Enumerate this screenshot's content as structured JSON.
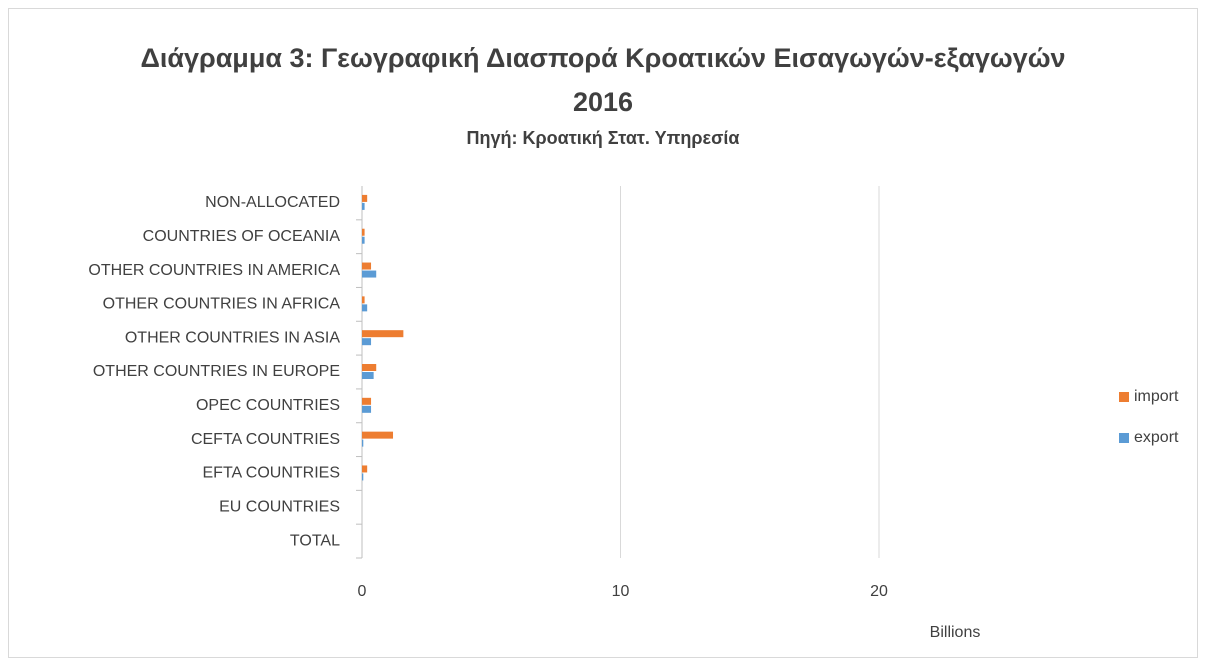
{
  "chart_data": {
    "type": "hbar",
    "title": "Διάγραμμα 3: Γεωγραφική Διασπορά Κροατικών Εισαγωγών-εξαγωγών 2016",
    "subtitle": "Πηγή: Κροατική Στατ. Υπηρεσία",
    "xlabel": "Billions",
    "categories": [
      "TOTAL",
      "EU COUNTRIES",
      "EFTA COUNTRIES",
      "CEFTA COUNTRIES",
      "OPEC COUNTRIES",
      "OTHER  COUNTRIES IN EUROPE",
      "OTHER  COUNTRIES IN ASIA",
      "OTHER  COUNTRIES IN AFRICA",
      "OTHER  COUNTRIES IN AMERICA",
      "COUNTRIES OF OCEANIA",
      "NON-ALLOCATED"
    ],
    "series": [
      {
        "name": "import",
        "color": "#ed7d31",
        "values": [
          null,
          null,
          0.2,
          1.2,
          0.35,
          0.55,
          1.6,
          0.1,
          0.35,
          0.1,
          0.2
        ]
      },
      {
        "name": "export",
        "color": "#5b9bd5",
        "values": [
          null,
          null,
          0.05,
          0.05,
          0.35,
          0.45,
          0.35,
          0.2,
          0.55,
          0.1,
          0.1
        ]
      }
    ],
    "xlim": [
      0,
      28
    ],
    "xticks": [
      0,
      10,
      20
    ],
    "grid": true,
    "legend": "right"
  }
}
